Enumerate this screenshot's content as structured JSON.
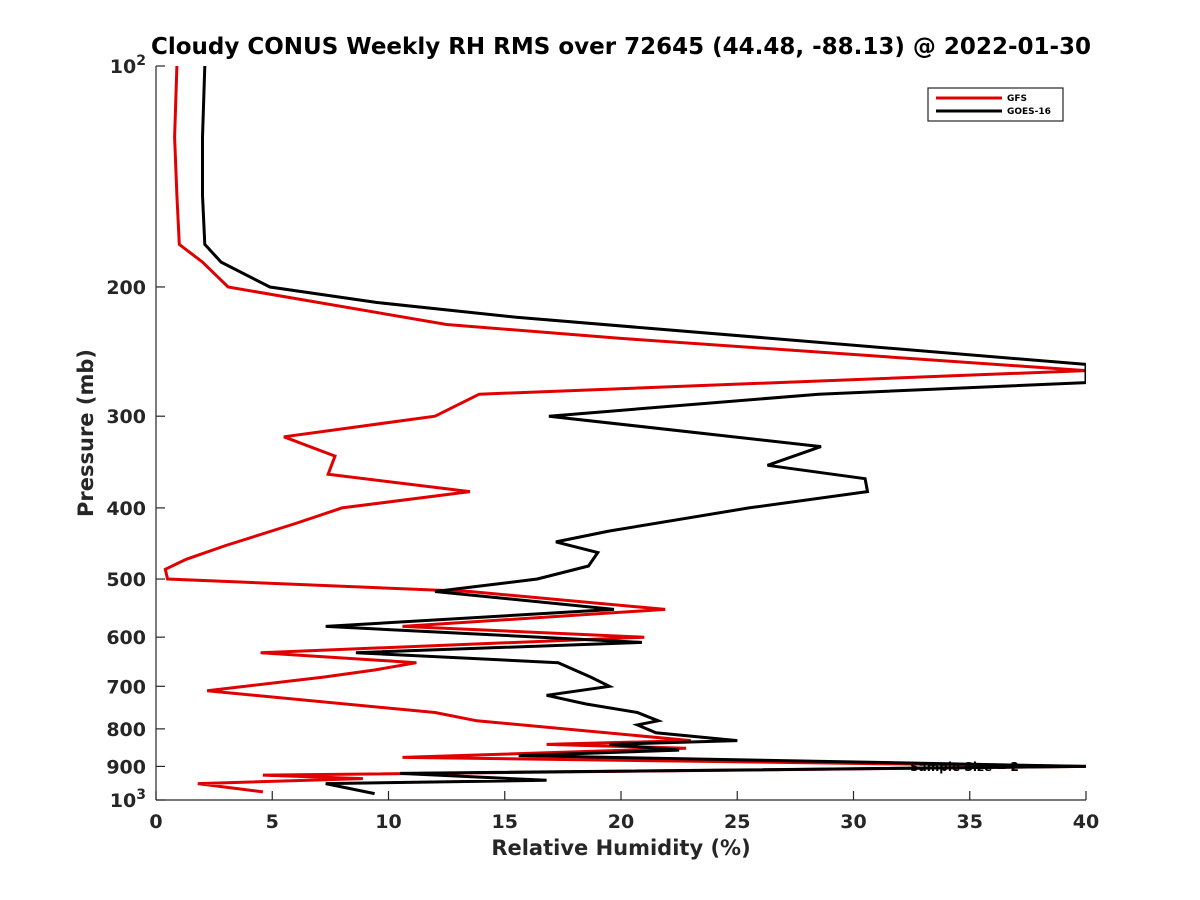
{
  "chart_data": {
    "type": "line",
    "title": "Cloudy CONUS Weekly RH RMS over 72645 (44.48, -88.13) @ 2022-01-30",
    "xlabel": "Relative Humidity (%)",
    "ylabel": "Pressure (mb)",
    "xlim": [
      0,
      40
    ],
    "ylim": [
      100,
      1000
    ],
    "y_scale": "log",
    "y_reversed": true,
    "x_ticks": [
      "0",
      "5",
      "10",
      "15",
      "20",
      "25",
      "30",
      "35",
      "40"
    ],
    "y_ticks": [
      {
        "value": 100,
        "base": "10",
        "exp": "2"
      },
      {
        "value": 200,
        "label": "200"
      },
      {
        "value": 300,
        "label": "300"
      },
      {
        "value": 400,
        "label": "400"
      },
      {
        "value": 500,
        "label": "500"
      },
      {
        "value": 600,
        "label": "600"
      },
      {
        "value": 700,
        "label": "700"
      },
      {
        "value": 800,
        "label": "800"
      },
      {
        "value": 900,
        "label": "900"
      },
      {
        "value": 1000,
        "base": "10",
        "exp": "3"
      }
    ],
    "grid": false,
    "legend_position": "top-right",
    "annotation": "Sample Size = 2",
    "series": [
      {
        "name": "GFS",
        "color": "#e00000",
        "points": [
          [
            0.9,
            100
          ],
          [
            0.8,
            125
          ],
          [
            0.9,
            150
          ],
          [
            1.0,
            175
          ],
          [
            2.0,
            185
          ],
          [
            3.1,
            200
          ],
          [
            12.5,
            225
          ],
          [
            20.0,
            235
          ],
          [
            40.0,
            260
          ],
          [
            13.9,
            280
          ],
          [
            12.0,
            300
          ],
          [
            5.5,
            320
          ],
          [
            7.7,
            340
          ],
          [
            7.4,
            360
          ],
          [
            13.5,
            380
          ],
          [
            8.0,
            400
          ],
          [
            6.0,
            420
          ],
          [
            3.0,
            450
          ],
          [
            1.3,
            470
          ],
          [
            0.4,
            485
          ],
          [
            0.5,
            500
          ],
          [
            13.5,
            520
          ],
          [
            21.9,
            550
          ],
          [
            10.6,
            580
          ],
          [
            21.0,
            600
          ],
          [
            4.5,
            630
          ],
          [
            11.2,
            650
          ],
          [
            9.4,
            665
          ],
          [
            7.2,
            680
          ],
          [
            2.2,
            710
          ],
          [
            12.0,
            760
          ],
          [
            13.8,
            780
          ],
          [
            23.0,
            830
          ],
          [
            16.8,
            840
          ],
          [
            22.8,
            850
          ],
          [
            10.6,
            875
          ],
          [
            40.0,
            900
          ],
          [
            4.6,
            925
          ],
          [
            8.9,
            935
          ],
          [
            1.8,
            950
          ],
          [
            4.6,
            975
          ]
        ]
      },
      {
        "name": "GOES-16",
        "color": "#000000",
        "points": [
          [
            2.1,
            100
          ],
          [
            2.0,
            125
          ],
          [
            2.0,
            150
          ],
          [
            2.1,
            175
          ],
          [
            2.8,
            185
          ],
          [
            4.9,
            200
          ],
          [
            9.5,
            210
          ],
          [
            15.5,
            220
          ],
          [
            40.0,
            255
          ],
          [
            40.0,
            270
          ],
          [
            28.5,
            280
          ],
          [
            16.9,
            300
          ],
          [
            28.6,
            330
          ],
          [
            26.3,
            350
          ],
          [
            30.5,
            365
          ],
          [
            30.6,
            380
          ],
          [
            25.5,
            400
          ],
          [
            19.5,
            430
          ],
          [
            17.2,
            445
          ],
          [
            19.0,
            460
          ],
          [
            18.6,
            480
          ],
          [
            16.4,
            500
          ],
          [
            12.0,
            520
          ],
          [
            19.7,
            550
          ],
          [
            7.3,
            580
          ],
          [
            20.9,
            610
          ],
          [
            8.6,
            630
          ],
          [
            17.3,
            650
          ],
          [
            18.7,
            680
          ],
          [
            19.5,
            700
          ],
          [
            16.8,
            720
          ],
          [
            18.5,
            740
          ],
          [
            20.7,
            760
          ],
          [
            21.6,
            780
          ],
          [
            20.7,
            790
          ],
          [
            21.5,
            810
          ],
          [
            25.0,
            830
          ],
          [
            19.5,
            840
          ],
          [
            22.5,
            855
          ],
          [
            15.6,
            870
          ],
          [
            40.0,
            900
          ],
          [
            10.5,
            920
          ],
          [
            16.8,
            940
          ],
          [
            7.3,
            950
          ],
          [
            9.4,
            980
          ]
        ]
      }
    ]
  }
}
